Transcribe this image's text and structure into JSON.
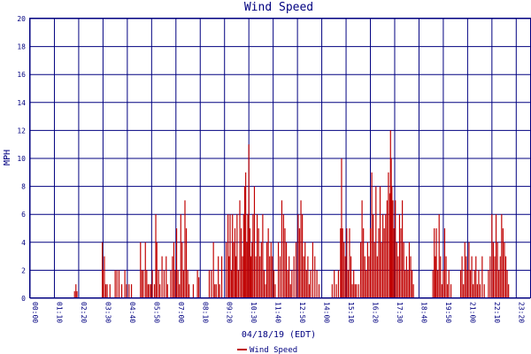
{
  "chart_data": {
    "type": "bar",
    "title": "Wind Speed",
    "xlabel": "04/18/19 (EDT)",
    "ylabel": "MPH",
    "ylim": [
      0,
      20
    ],
    "yticks": [
      "0",
      "2",
      "4",
      "6",
      "8",
      "10",
      "12",
      "14",
      "16",
      "18",
      "20"
    ],
    "xticks": [
      "00:00",
      "01:10",
      "02:20",
      "03:30",
      "04:40",
      "05:50",
      "07:00",
      "08:10",
      "09:20",
      "10:30",
      "11:40",
      "12:50",
      "14:00",
      "15:10",
      "16:20",
      "17:30",
      "18:40",
      "19:50",
      "21:00",
      "22:10",
      "23:20"
    ],
    "xtick_end": "23:59",
    "legend": "Wind Speed",
    "grid": true,
    "colors": {
      "bars": "#c00000",
      "grid": "#000080",
      "text": "#000080",
      "legend_line": "#c00000"
    },
    "series": [
      {
        "name": "Wind Speed",
        "points": [
          [
            "02:08",
            0.5
          ],
          [
            "02:12",
            1
          ],
          [
            "02:15",
            0.5
          ],
          [
            "03:28",
            4
          ],
          [
            "03:30",
            2
          ],
          [
            "03:34",
            3
          ],
          [
            "03:38",
            1
          ],
          [
            "03:42",
            1
          ],
          [
            "03:50",
            1
          ],
          [
            "04:05",
            2
          ],
          [
            "04:10",
            2
          ],
          [
            "04:16",
            2
          ],
          [
            "04:24",
            1
          ],
          [
            "04:33",
            2
          ],
          [
            "04:38",
            1
          ],
          [
            "04:45",
            1
          ],
          [
            "04:52",
            1
          ],
          [
            "05:18",
            4
          ],
          [
            "05:22",
            2
          ],
          [
            "05:26",
            2
          ],
          [
            "05:32",
            4
          ],
          [
            "05:36",
            2
          ],
          [
            "05:40",
            1
          ],
          [
            "05:44",
            1
          ],
          [
            "05:48",
            1
          ],
          [
            "05:52",
            2
          ],
          [
            "05:58",
            1
          ],
          [
            "06:02",
            6
          ],
          [
            "06:05",
            4
          ],
          [
            "06:10",
            2
          ],
          [
            "06:14",
            1
          ],
          [
            "06:20",
            3
          ],
          [
            "06:26",
            2
          ],
          [
            "06:32",
            3
          ],
          [
            "06:36",
            1
          ],
          [
            "06:45",
            2
          ],
          [
            "06:50",
            3
          ],
          [
            "06:54",
            4
          ],
          [
            "06:58",
            2
          ],
          [
            "07:02",
            5
          ],
          [
            "07:06",
            2
          ],
          [
            "07:10",
            1
          ],
          [
            "07:14",
            6
          ],
          [
            "07:18",
            4
          ],
          [
            "07:22",
            2
          ],
          [
            "07:26",
            7
          ],
          [
            "07:30",
            5
          ],
          [
            "07:34",
            2
          ],
          [
            "07:38",
            1
          ],
          [
            "07:50",
            1
          ],
          [
            "08:02",
            2
          ],
          [
            "08:06",
            1.5
          ],
          [
            "08:36",
            2
          ],
          [
            "08:42",
            2
          ],
          [
            "08:48",
            4
          ],
          [
            "08:52",
            1
          ],
          [
            "08:56",
            1
          ],
          [
            "09:02",
            3
          ],
          [
            "09:06",
            1
          ],
          [
            "09:12",
            3
          ],
          [
            "09:25",
            4
          ],
          [
            "09:30",
            6
          ],
          [
            "09:33",
            3
          ],
          [
            "09:36",
            6
          ],
          [
            "09:40",
            2
          ],
          [
            "09:43",
            6
          ],
          [
            "09:46",
            4
          ],
          [
            "09:50",
            5
          ],
          [
            "09:53",
            3
          ],
          [
            "09:56",
            6
          ],
          [
            "10:00",
            2
          ],
          [
            "10:04",
            7
          ],
          [
            "10:08",
            5
          ],
          [
            "10:12",
            3
          ],
          [
            "10:15",
            6
          ],
          [
            "10:18",
            8
          ],
          [
            "10:21",
            9
          ],
          [
            "10:24",
            4
          ],
          [
            "10:27",
            6
          ],
          [
            "10:30",
            11
          ],
          [
            "10:33",
            5
          ],
          [
            "10:36",
            3
          ],
          [
            "10:39",
            4
          ],
          [
            "10:42",
            6
          ],
          [
            "10:46",
            8
          ],
          [
            "10:50",
            3
          ],
          [
            "10:54",
            6
          ],
          [
            "10:58",
            5
          ],
          [
            "11:02",
            3
          ],
          [
            "11:06",
            4
          ],
          [
            "11:10",
            6
          ],
          [
            "11:14",
            2
          ],
          [
            "11:18",
            1
          ],
          [
            "11:22",
            4
          ],
          [
            "11:26",
            5
          ],
          [
            "11:30",
            3
          ],
          [
            "11:34",
            4
          ],
          [
            "11:38",
            3
          ],
          [
            "11:42",
            2
          ],
          [
            "11:46",
            1
          ],
          [
            "11:55",
            4
          ],
          [
            "12:00",
            3
          ],
          [
            "12:05",
            7
          ],
          [
            "12:10",
            6
          ],
          [
            "12:14",
            5
          ],
          [
            "12:18",
            4
          ],
          [
            "12:22",
            2
          ],
          [
            "12:26",
            3
          ],
          [
            "12:30",
            1
          ],
          [
            "12:34",
            2
          ],
          [
            "12:40",
            3
          ],
          [
            "12:46",
            4
          ],
          [
            "12:52",
            6
          ],
          [
            "12:56",
            5
          ],
          [
            "13:00",
            7
          ],
          [
            "13:04",
            6
          ],
          [
            "13:08",
            3
          ],
          [
            "13:12",
            4
          ],
          [
            "13:16",
            2
          ],
          [
            "13:20",
            3
          ],
          [
            "13:24",
            1
          ],
          [
            "13:28",
            2
          ],
          [
            "13:34",
            4
          ],
          [
            "13:40",
            3
          ],
          [
            "13:46",
            2
          ],
          [
            "13:52",
            1
          ],
          [
            "14:30",
            1
          ],
          [
            "14:36",
            2
          ],
          [
            "14:42",
            1
          ],
          [
            "14:48",
            2
          ],
          [
            "14:54",
            5
          ],
          [
            "14:57",
            10
          ],
          [
            "15:00",
            5
          ],
          [
            "15:04",
            4
          ],
          [
            "15:08",
            3
          ],
          [
            "15:12",
            5
          ],
          [
            "15:16",
            2
          ],
          [
            "15:20",
            5
          ],
          [
            "15:24",
            3
          ],
          [
            "15:28",
            1
          ],
          [
            "15:32",
            2
          ],
          [
            "15:36",
            1
          ],
          [
            "15:40",
            1
          ],
          [
            "15:46",
            1
          ],
          [
            "15:52",
            4
          ],
          [
            "15:56",
            7
          ],
          [
            "16:00",
            5
          ],
          [
            "16:04",
            3
          ],
          [
            "16:08",
            2
          ],
          [
            "16:12",
            4
          ],
          [
            "16:16",
            3
          ],
          [
            "16:20",
            5
          ],
          [
            "16:24",
            9
          ],
          [
            "16:28",
            6
          ],
          [
            "16:32",
            4
          ],
          [
            "16:36",
            8
          ],
          [
            "16:40",
            3
          ],
          [
            "16:44",
            5
          ],
          [
            "16:48",
            8
          ],
          [
            "16:52",
            4
          ],
          [
            "16:56",
            6
          ],
          [
            "17:00",
            5
          ],
          [
            "17:04",
            6
          ],
          [
            "17:08",
            7
          ],
          [
            "17:12",
            9
          ],
          [
            "17:16",
            7.5
          ],
          [
            "17:18",
            12
          ],
          [
            "17:20",
            10
          ],
          [
            "17:22",
            8
          ],
          [
            "17:25",
            7
          ],
          [
            "17:28",
            5
          ],
          [
            "17:32",
            7
          ],
          [
            "17:36",
            4
          ],
          [
            "17:40",
            3
          ],
          [
            "17:44",
            6
          ],
          [
            "17:48",
            5
          ],
          [
            "17:52",
            7
          ],
          [
            "17:56",
            4
          ],
          [
            "18:00",
            2
          ],
          [
            "18:04",
            3
          ],
          [
            "18:08",
            2
          ],
          [
            "18:12",
            4
          ],
          [
            "18:16",
            3
          ],
          [
            "18:20",
            2
          ],
          [
            "18:24",
            1
          ],
          [
            "19:20",
            2
          ],
          [
            "19:24",
            5
          ],
          [
            "19:27",
            3
          ],
          [
            "19:30",
            5
          ],
          [
            "19:34",
            2
          ],
          [
            "19:38",
            6
          ],
          [
            "19:42",
            3
          ],
          [
            "19:46",
            1
          ],
          [
            "19:50",
            2
          ],
          [
            "19:54",
            5
          ],
          [
            "19:58",
            3
          ],
          [
            "20:02",
            1
          ],
          [
            "20:06",
            2
          ],
          [
            "20:12",
            1
          ],
          [
            "20:40",
            2
          ],
          [
            "20:44",
            3
          ],
          [
            "20:48",
            1
          ],
          [
            "20:52",
            4
          ],
          [
            "20:56",
            3
          ],
          [
            "21:00",
            2
          ],
          [
            "21:04",
            4
          ],
          [
            "21:08",
            2
          ],
          [
            "21:12",
            3
          ],
          [
            "21:16",
            1
          ],
          [
            "21:20",
            2
          ],
          [
            "21:24",
            3
          ],
          [
            "21:28",
            1
          ],
          [
            "21:32",
            2
          ],
          [
            "21:36",
            1
          ],
          [
            "21:42",
            3
          ],
          [
            "21:48",
            1
          ],
          [
            "22:00",
            2
          ],
          [
            "22:05",
            3
          ],
          [
            "22:10",
            6
          ],
          [
            "22:14",
            4
          ],
          [
            "22:18",
            3
          ],
          [
            "22:22",
            6
          ],
          [
            "22:26",
            4
          ],
          [
            "22:30",
            2
          ],
          [
            "22:34",
            3
          ],
          [
            "22:38",
            6
          ],
          [
            "22:42",
            5
          ],
          [
            "22:46",
            4
          ],
          [
            "22:50",
            3
          ],
          [
            "22:54",
            2
          ],
          [
            "22:58",
            1
          ]
        ]
      }
    ]
  }
}
